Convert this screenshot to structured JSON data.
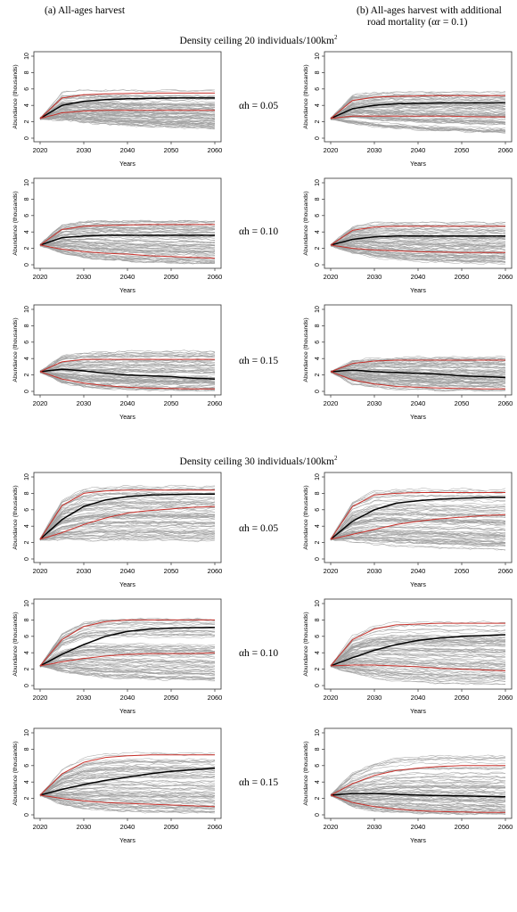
{
  "col_titles": {
    "left": "(a)  All-ages harvest",
    "right_line1": "(b) All-ages harvest with additional",
    "right_line2": "road mortality (αr = 0.1)"
  },
  "sections": [
    {
      "label": "Density ceiling 20 individuals/100km",
      "sup": "2"
    },
    {
      "label": "Density ceiling 30 individuals/100km",
      "sup": "2"
    }
  ],
  "alpha_labels": [
    "αh = 0.05",
    "αh = 0.10",
    "αh = 0.15",
    "αh = 0.05",
    "αh = 0.10",
    "αh = 0.15"
  ],
  "chart_data": [
    {
      "type": "line",
      "panel": "20-a-0.05",
      "xlabel": "Years",
      "ylabel": "Abundance (thousands)",
      "xlim": [
        2020,
        2060
      ],
      "ylim": [
        0,
        10
      ],
      "x_ticks": [
        2020,
        2030,
        2040,
        2050,
        2060
      ],
      "y_ticks": [
        0,
        2,
        4,
        6,
        8,
        10
      ],
      "x": [
        2020,
        2025,
        2030,
        2035,
        2040,
        2045,
        2050,
        2055,
        2060
      ],
      "series": [
        {
          "values": [
            2.4,
            4.0,
            4.5,
            4.7,
            4.8,
            4.85,
            4.9,
            4.9,
            4.9
          ]
        },
        {
          "values": [
            2.4,
            4.9,
            5.3,
            5.4,
            5.45,
            5.5,
            5.5,
            5.5,
            5.5
          ]
        },
        {
          "values": [
            2.4,
            3.1,
            3.3,
            3.4,
            3.4,
            3.4,
            3.4,
            3.4,
            3.4
          ]
        }
      ],
      "envelope": {
        "upper": [
          2.4,
          5.7,
          6.0,
          6.0,
          6.0,
          6.0,
          6.0,
          6.0,
          6.0
        ],
        "lower": [
          2.4,
          2.1,
          1.8,
          1.6,
          1.4,
          1.3,
          1.2,
          1.1,
          1.0
        ]
      }
    },
    {
      "type": "line",
      "panel": "20-b-0.05",
      "xlabel": "Years",
      "ylabel": "Abundance (thousands)",
      "xlim": [
        2020,
        2060
      ],
      "ylim": [
        0,
        10
      ],
      "x_ticks": [
        2020,
        2030,
        2040,
        2050,
        2060
      ],
      "y_ticks": [
        0,
        2,
        4,
        6,
        8,
        10
      ],
      "x": [
        2020,
        2025,
        2030,
        2035,
        2040,
        2045,
        2050,
        2055,
        2060
      ],
      "series": [
        {
          "values": [
            2.4,
            3.6,
            4.0,
            4.2,
            4.25,
            4.3,
            4.3,
            4.3,
            4.3
          ]
        },
        {
          "values": [
            2.4,
            4.6,
            5.0,
            5.1,
            5.15,
            5.2,
            5.2,
            5.2,
            5.2
          ]
        },
        {
          "values": [
            2.4,
            2.7,
            2.7,
            2.7,
            2.7,
            2.7,
            2.65,
            2.6,
            2.6
          ]
        }
      ],
      "envelope": {
        "upper": [
          2.4,
          5.3,
          5.6,
          5.7,
          5.7,
          5.7,
          5.7,
          5.7,
          5.7
        ],
        "lower": [
          2.4,
          1.8,
          1.4,
          1.2,
          1.0,
          0.9,
          0.8,
          0.7,
          0.6
        ]
      }
    },
    {
      "type": "line",
      "panel": "20-a-0.10",
      "xlabel": "Years",
      "ylabel": "Abundance (thousands)",
      "xlim": [
        2020,
        2060
      ],
      "ylim": [
        0,
        10
      ],
      "x_ticks": [
        2020,
        2030,
        2040,
        2050,
        2060
      ],
      "y_ticks": [
        0,
        2,
        4,
        6,
        8,
        10
      ],
      "x": [
        2020,
        2025,
        2030,
        2035,
        2040,
        2045,
        2050,
        2055,
        2060
      ],
      "series": [
        {
          "values": [
            2.4,
            3.3,
            3.5,
            3.6,
            3.6,
            3.6,
            3.6,
            3.6,
            3.6
          ]
        },
        {
          "values": [
            2.4,
            4.3,
            4.7,
            4.8,
            4.85,
            4.9,
            4.9,
            4.9,
            4.9
          ]
        },
        {
          "values": [
            2.4,
            1.9,
            1.6,
            1.4,
            1.3,
            1.1,
            1.0,
            0.9,
            0.8
          ]
        }
      ],
      "envelope": {
        "upper": [
          2.4,
          5.0,
          5.4,
          5.5,
          5.5,
          5.5,
          5.5,
          5.5,
          5.5
        ],
        "lower": [
          2.4,
          1.4,
          0.9,
          0.6,
          0.4,
          0.3,
          0.2,
          0.15,
          0.1
        ]
      }
    },
    {
      "type": "line",
      "panel": "20-b-0.10",
      "xlabel": "Years",
      "ylabel": "Abundance (thousands)",
      "xlim": [
        2020,
        2060
      ],
      "ylim": [
        0,
        10
      ],
      "x_ticks": [
        2020,
        2030,
        2040,
        2050,
        2060
      ],
      "y_ticks": [
        0,
        2,
        4,
        6,
        8,
        10
      ],
      "x": [
        2020,
        2025,
        2030,
        2035,
        2040,
        2045,
        2050,
        2055,
        2060
      ],
      "series": [
        {
          "values": [
            2.4,
            3.1,
            3.4,
            3.5,
            3.5,
            3.5,
            3.5,
            3.5,
            3.5
          ]
        },
        {
          "values": [
            2.4,
            4.2,
            4.6,
            4.7,
            4.7,
            4.7,
            4.7,
            4.7,
            4.7
          ]
        },
        {
          "values": [
            2.4,
            2.0,
            1.8,
            1.7,
            1.6,
            1.55,
            1.5,
            1.5,
            1.5
          ]
        }
      ],
      "envelope": {
        "upper": [
          2.4,
          4.8,
          5.2,
          5.3,
          5.3,
          5.3,
          5.3,
          5.3,
          5.3
        ],
        "lower": [
          2.4,
          1.4,
          0.9,
          0.6,
          0.4,
          0.3,
          0.2,
          0.15,
          0.1
        ]
      }
    },
    {
      "type": "line",
      "panel": "20-a-0.15",
      "xlabel": "Years",
      "ylabel": "Abundance (thousands)",
      "xlim": [
        2020,
        2060
      ],
      "ylim": [
        0,
        10
      ],
      "x_ticks": [
        2020,
        2030,
        2040,
        2050,
        2060
      ],
      "y_ticks": [
        0,
        2,
        4,
        6,
        8,
        10
      ],
      "x": [
        2020,
        2025,
        2030,
        2035,
        2040,
        2045,
        2050,
        2055,
        2060
      ],
      "series": [
        {
          "values": [
            2.4,
            2.7,
            2.5,
            2.2,
            2.0,
            1.9,
            1.8,
            1.6,
            1.5
          ]
        },
        {
          "values": [
            2.4,
            3.6,
            3.9,
            3.9,
            3.9,
            3.9,
            3.9,
            3.9,
            3.9
          ]
        },
        {
          "values": [
            2.4,
            1.5,
            1.0,
            0.7,
            0.5,
            0.4,
            0.35,
            0.3,
            0.3
          ]
        }
      ],
      "envelope": {
        "upper": [
          2.4,
          4.4,
          4.8,
          4.9,
          5.0,
          5.0,
          5.0,
          5.0,
          5.0
        ],
        "lower": [
          2.4,
          1.0,
          0.5,
          0.3,
          0.2,
          0.1,
          0.1,
          0.05,
          0.05
        ]
      }
    },
    {
      "type": "line",
      "panel": "20-b-0.15",
      "xlabel": "Years",
      "ylabel": "Abundance (thousands)",
      "xlim": [
        2020,
        2060
      ],
      "ylim": [
        0,
        10
      ],
      "x_ticks": [
        2020,
        2030,
        2040,
        2050,
        2060
      ],
      "y_ticks": [
        0,
        2,
        4,
        6,
        8,
        10
      ],
      "x": [
        2020,
        2025,
        2030,
        2035,
        2040,
        2045,
        2050,
        2055,
        2060
      ],
      "series": [
        {
          "values": [
            2.4,
            2.6,
            2.4,
            2.3,
            2.2,
            2.1,
            1.9,
            1.8,
            1.7
          ]
        },
        {
          "values": [
            2.4,
            3.4,
            3.7,
            3.8,
            3.8,
            3.8,
            3.8,
            3.8,
            3.8
          ]
        },
        {
          "values": [
            2.4,
            1.4,
            0.9,
            0.6,
            0.5,
            0.4,
            0.35,
            0.3,
            0.3
          ]
        }
      ],
      "envelope": {
        "upper": [
          2.4,
          4.1,
          4.5,
          4.6,
          4.7,
          4.7,
          4.7,
          4.7,
          4.7
        ],
        "lower": [
          2.4,
          0.9,
          0.5,
          0.3,
          0.2,
          0.1,
          0.1,
          0.05,
          0.05
        ]
      }
    },
    {
      "type": "line",
      "panel": "30-a-0.05",
      "xlabel": "Years",
      "ylabel": "Abundance (thousands)",
      "xlim": [
        2020,
        2060
      ],
      "ylim": [
        0,
        10
      ],
      "x_ticks": [
        2020,
        2030,
        2040,
        2050,
        2060
      ],
      "y_ticks": [
        0,
        2,
        4,
        6,
        8,
        10
      ],
      "x": [
        2020,
        2025,
        2030,
        2035,
        2040,
        2045,
        2050,
        2055,
        2060
      ],
      "series": [
        {
          "values": [
            2.4,
            4.8,
            6.4,
            7.2,
            7.6,
            7.8,
            7.85,
            7.9,
            7.9
          ]
        },
        {
          "values": [
            2.4,
            6.5,
            8.0,
            8.3,
            8.4,
            8.4,
            8.4,
            8.4,
            8.4
          ]
        },
        {
          "values": [
            2.4,
            3.2,
            4.2,
            5.0,
            5.6,
            5.9,
            6.1,
            6.3,
            6.4
          ]
        }
      ],
      "envelope": {
        "upper": [
          2.4,
          7.4,
          8.8,
          9.1,
          9.2,
          9.2,
          9.2,
          9.2,
          9.2
        ],
        "lower": [
          2.4,
          2.3,
          2.2,
          2.2,
          2.2,
          2.2,
          2.2,
          2.1,
          2.1
        ]
      }
    },
    {
      "type": "line",
      "panel": "30-b-0.05",
      "xlabel": "Years",
      "ylabel": "Abundance (thousands)",
      "xlim": [
        2020,
        2060
      ],
      "ylim": [
        0,
        10
      ],
      "x_ticks": [
        2020,
        2030,
        2040,
        2050,
        2060
      ],
      "y_ticks": [
        0,
        2,
        4,
        6,
        8,
        10
      ],
      "x": [
        2020,
        2025,
        2030,
        2035,
        2040,
        2045,
        2050,
        2055,
        2060
      ],
      "series": [
        {
          "values": [
            2.4,
            4.6,
            6.0,
            6.8,
            7.1,
            7.3,
            7.4,
            7.5,
            7.5
          ]
        },
        {
          "values": [
            2.4,
            6.4,
            7.8,
            8.0,
            8.1,
            8.1,
            8.1,
            8.1,
            8.1
          ]
        },
        {
          "values": [
            2.4,
            3.0,
            3.6,
            4.2,
            4.6,
            4.9,
            5.1,
            5.3,
            5.4
          ]
        }
      ],
      "envelope": {
        "upper": [
          2.4,
          7.2,
          8.5,
          8.8,
          8.8,
          8.8,
          8.8,
          8.8,
          8.8
        ],
        "lower": [
          2.4,
          2.1,
          1.8,
          1.6,
          1.5,
          1.4,
          1.3,
          1.2,
          1.1
        ]
      }
    },
    {
      "type": "line",
      "panel": "30-a-0.10",
      "xlabel": "Years",
      "ylabel": "Abundance (thousands)",
      "xlim": [
        2020,
        2060
      ],
      "ylim": [
        0,
        10
      ],
      "x_ticks": [
        2020,
        2030,
        2040,
        2050,
        2060
      ],
      "y_ticks": [
        0,
        2,
        4,
        6,
        8,
        10
      ],
      "x": [
        2020,
        2025,
        2030,
        2035,
        2040,
        2045,
        2050,
        2055,
        2060
      ],
      "series": [
        {
          "values": [
            2.4,
            3.8,
            5.0,
            6.0,
            6.6,
            6.9,
            7.0,
            7.05,
            7.1
          ]
        },
        {
          "values": [
            2.4,
            5.6,
            7.2,
            7.8,
            8.0,
            8.0,
            8.0,
            8.0,
            8.0
          ]
        },
        {
          "values": [
            2.4,
            2.9,
            3.3,
            3.6,
            3.8,
            3.9,
            3.9,
            3.9,
            4.0
          ]
        }
      ],
      "envelope": {
        "upper": [
          2.4,
          6.6,
          8.2,
          8.6,
          8.7,
          8.7,
          8.7,
          8.7,
          8.7
        ],
        "lower": [
          2.4,
          1.6,
          1.1,
          0.8,
          0.7,
          0.6,
          0.5,
          0.5,
          0.4
        ]
      }
    },
    {
      "type": "line",
      "panel": "30-b-0.10",
      "xlabel": "Years",
      "ylabel": "Abundance (thousands)",
      "xlim": [
        2020,
        2060
      ],
      "ylim": [
        0,
        10
      ],
      "x_ticks": [
        2020,
        2030,
        2040,
        2050,
        2060
      ],
      "y_ticks": [
        0,
        2,
        4,
        6,
        8,
        10
      ],
      "x": [
        2020,
        2025,
        2030,
        2035,
        2040,
        2045,
        2050,
        2055,
        2060
      ],
      "series": [
        {
          "values": [
            2.4,
            3.4,
            4.3,
            5.0,
            5.5,
            5.8,
            6.0,
            6.1,
            6.2
          ]
        },
        {
          "values": [
            2.4,
            5.6,
            6.9,
            7.4,
            7.5,
            7.6,
            7.6,
            7.6,
            7.6
          ]
        },
        {
          "values": [
            2.4,
            2.5,
            2.5,
            2.4,
            2.3,
            2.1,
            2.0,
            1.9,
            1.8
          ]
        }
      ],
      "envelope": {
        "upper": [
          2.4,
          6.4,
          7.8,
          8.2,
          8.3,
          8.3,
          8.3,
          8.3,
          8.3
        ],
        "lower": [
          2.4,
          1.5,
          0.9,
          0.6,
          0.4,
          0.3,
          0.2,
          0.2,
          0.15
        ]
      }
    },
    {
      "type": "line",
      "panel": "30-a-0.15",
      "xlabel": "Years",
      "ylabel": "Abundance (thousands)",
      "xlim": [
        2020,
        2060
      ],
      "ylim": [
        0,
        10
      ],
      "x_ticks": [
        2020,
        2030,
        2040,
        2050,
        2060
      ],
      "y_ticks": [
        0,
        2,
        4,
        6,
        8,
        10
      ],
      "x": [
        2020,
        2025,
        2030,
        2035,
        2040,
        2045,
        2050,
        2055,
        2060
      ],
      "series": [
        {
          "values": [
            2.4,
            3.1,
            3.7,
            4.2,
            4.6,
            5.0,
            5.3,
            5.5,
            5.7
          ]
        },
        {
          "values": [
            2.4,
            5.0,
            6.4,
            7.0,
            7.2,
            7.3,
            7.3,
            7.3,
            7.3
          ]
        },
        {
          "values": [
            2.4,
            2.0,
            1.7,
            1.5,
            1.4,
            1.3,
            1.2,
            1.1,
            1.0
          ]
        }
      ],
      "envelope": {
        "upper": [
          2.4,
          5.8,
          7.4,
          7.9,
          8.1,
          8.1,
          8.1,
          8.1,
          8.1
        ],
        "lower": [
          2.4,
          1.2,
          0.6,
          0.4,
          0.2,
          0.15,
          0.1,
          0.1,
          0.05
        ]
      }
    },
    {
      "type": "line",
      "panel": "30-b-0.15",
      "xlabel": "Years",
      "ylabel": "Abundance (thousands)",
      "xlim": [
        2020,
        2060
      ],
      "ylim": [
        0,
        10
      ],
      "x_ticks": [
        2020,
        2030,
        2040,
        2050,
        2060
      ],
      "y_ticks": [
        0,
        2,
        4,
        6,
        8,
        10
      ],
      "x": [
        2020,
        2025,
        2030,
        2035,
        2040,
        2045,
        2050,
        2055,
        2060
      ],
      "series": [
        {
          "values": [
            2.4,
            2.6,
            2.6,
            2.5,
            2.4,
            2.35,
            2.3,
            2.25,
            2.2
          ]
        },
        {
          "values": [
            2.4,
            3.8,
            4.8,
            5.4,
            5.7,
            5.9,
            6.0,
            6.0,
            6.0
          ]
        },
        {
          "values": [
            2.4,
            1.5,
            1.0,
            0.7,
            0.5,
            0.4,
            0.35,
            0.3,
            0.3
          ]
        }
      ],
      "envelope": {
        "upper": [
          2.4,
          5.3,
          6.6,
          7.2,
          7.5,
          7.6,
          7.6,
          7.6,
          7.6
        ],
        "lower": [
          2.4,
          1.0,
          0.5,
          0.3,
          0.2,
          0.1,
          0.1,
          0.05,
          0.05
        ]
      }
    }
  ],
  "colors": {
    "replicate": "#9e9e9e",
    "mean": "#000000",
    "quantile": "#c8312b",
    "frame": "#333333"
  }
}
